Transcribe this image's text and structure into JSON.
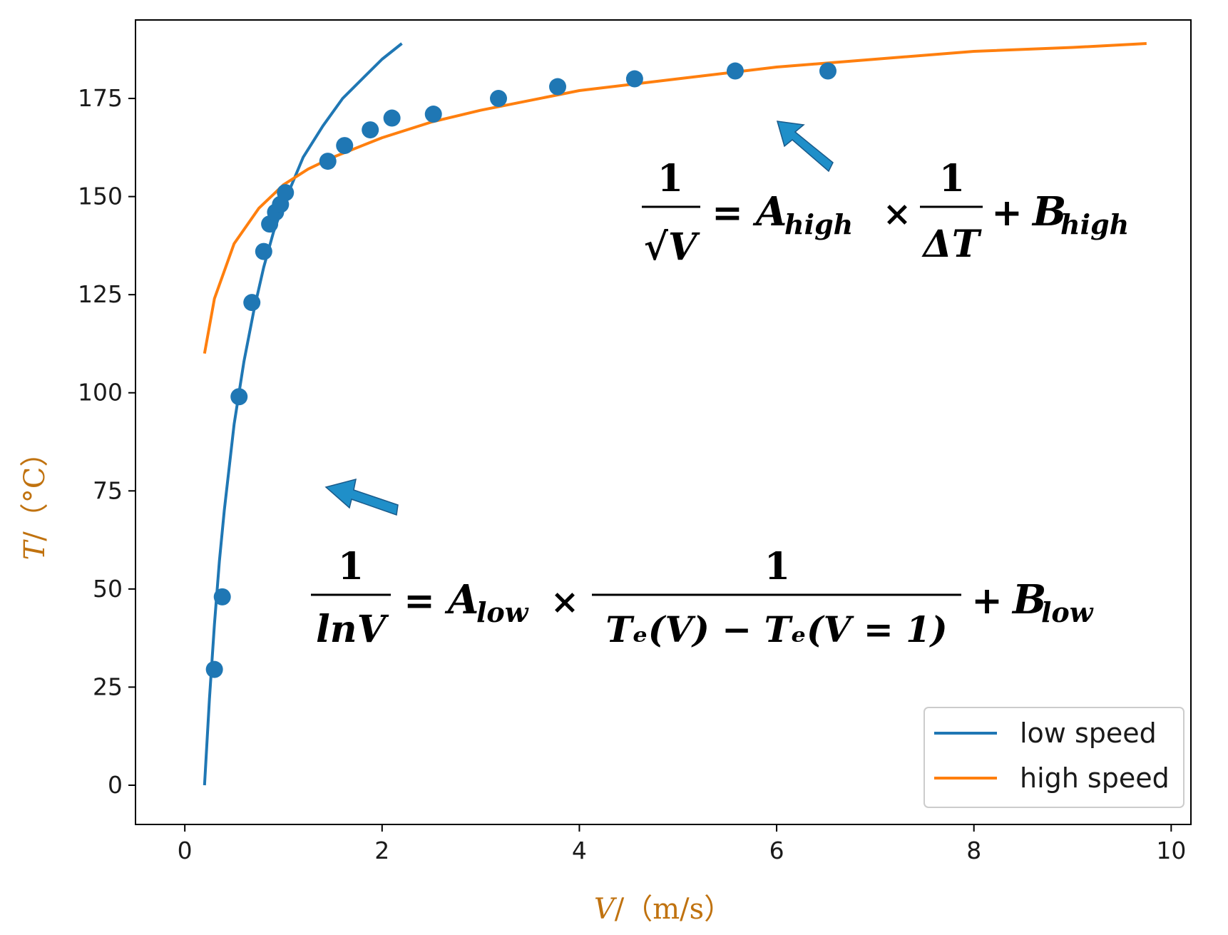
{
  "chart_data": {
    "type": "scatter",
    "xlabel_symbol": "V",
    "xlabel_unit": "/（m/s）",
    "ylabel_symbol": "T",
    "ylabel_unit": "/（°C）",
    "xlim": [
      -0.5,
      10.2
    ],
    "ylim": [
      -10,
      195
    ],
    "xticks": [
      0,
      2,
      4,
      6,
      8,
      10
    ],
    "yticks": [
      0,
      25,
      50,
      75,
      100,
      125,
      150,
      175
    ],
    "grid": false,
    "legend_position": "bottom-right",
    "colors": {
      "low": "#1f77b4",
      "high": "#ff7f0e",
      "points": "#1f77b4",
      "arrow": "#1f8fc9"
    },
    "points": {
      "x": [
        0.3,
        0.38,
        0.55,
        0.68,
        0.8,
        0.86,
        0.92,
        0.97,
        1.02,
        1.45,
        1.62,
        1.88,
        2.1,
        2.52,
        3.18,
        3.78,
        4.56,
        5.58,
        6.52
      ],
      "y": [
        29.5,
        48,
        99,
        123,
        136,
        143,
        146,
        148,
        151,
        159,
        163,
        167,
        170,
        171,
        175,
        178,
        180,
        182,
        182
      ]
    },
    "series": [
      {
        "name": "low speed",
        "x": [
          0.2,
          0.25,
          0.3,
          0.35,
          0.4,
          0.5,
          0.6,
          0.7,
          0.8,
          0.9,
          1.0,
          1.2,
          1.4,
          1.6,
          1.8,
          2.0,
          2.2
        ],
        "values": [
          0,
          22,
          41,
          57,
          70,
          92,
          108,
          121,
          132,
          141,
          148,
          160,
          168,
          175,
          180,
          185,
          189
        ]
      },
      {
        "name": "high speed",
        "x": [
          0.2,
          0.3,
          0.5,
          0.75,
          1.0,
          1.25,
          1.5,
          2.0,
          2.5,
          3.0,
          4.0,
          5.0,
          6.0,
          7.0,
          8.0,
          9.0,
          9.75
        ],
        "values": [
          110,
          124,
          138,
          147,
          153,
          157,
          160,
          165,
          169,
          172,
          177,
          180,
          183,
          185,
          187,
          188,
          189
        ]
      }
    ],
    "annotations": {
      "high": {
        "lhs_num": "1",
        "lhs_den": "√V",
        "eq": "=",
        "A": "A",
        "A_sub": "high",
        "times": "×",
        "rhs_num": "1",
        "rhs_den": "ΔT",
        "plus": "+",
        "B": "B",
        "B_sub": "high"
      },
      "low": {
        "lhs_num": "1",
        "lhs_den": "lnV",
        "eq": "=",
        "A": "A",
        "A_sub": "low",
        "times": "×",
        "rhs_num": "1",
        "rhs_den": "Tₑ(V) − Tₑ(V = 1)",
        "plus": "+",
        "B": "B",
        "B_sub": "low"
      }
    }
  }
}
